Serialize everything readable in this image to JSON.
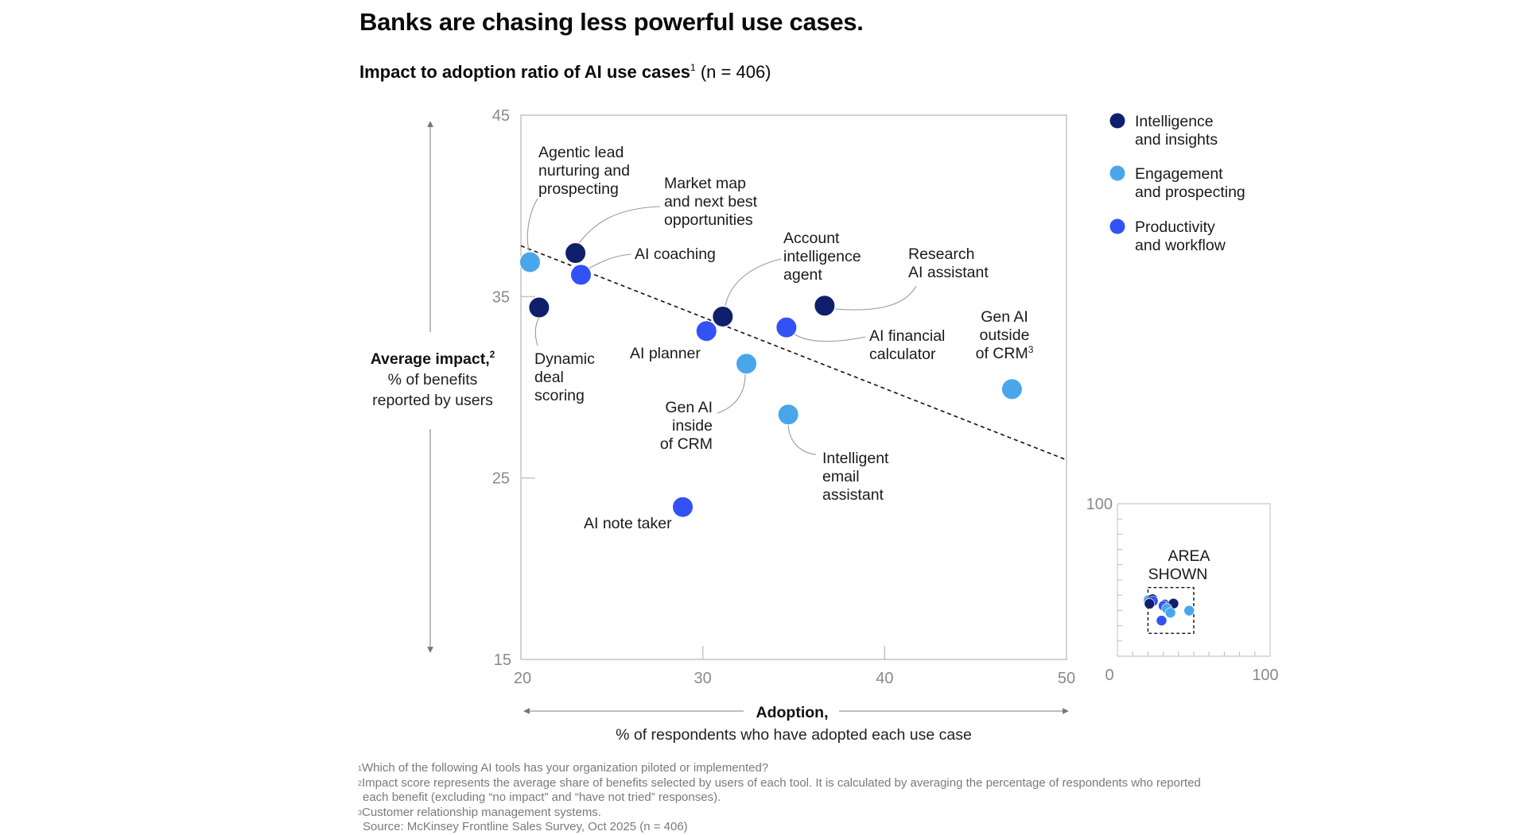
{
  "title": "Banks are chasing less powerful use cases.",
  "subtitle": {
    "main": "Impact to adoption ratio of AI use cases",
    "sup": "1",
    "n": " (n = 406)"
  },
  "colors": {
    "intelligence": "#0f1f6b",
    "engagement": "#4aa6ea",
    "productivity": "#3352f5",
    "axis": "#b8b8b8",
    "arrow": "#777777",
    "tick_text": "#8a8a8a",
    "leader": "#9a9a9a"
  },
  "chart_data": {
    "type": "scatter",
    "title": "Impact to adoption ratio of AI use cases",
    "xlabel": "Adoption,",
    "xlabel_sub": "% of respondents who have adopted each use case",
    "ylabel": "Average impact,",
    "ylabel_sup": "2",
    "ylabel_sub": [
      "% of benefits",
      "reported by users"
    ],
    "xlim": [
      20,
      50
    ],
    "ylim": [
      15,
      45
    ],
    "x_ticks": [
      "20",
      "30",
      "40",
      "50"
    ],
    "y_ticks": [
      "45",
      "35",
      "25",
      "15"
    ],
    "x_tick_values": [
      20,
      30,
      40,
      50
    ],
    "y_tick_values": [
      45,
      35,
      25,
      15
    ],
    "grid": false,
    "legend_position": "top-right",
    "series": [
      {
        "name": "Intelligence and insights",
        "legend_lines": [
          "Intelligence",
          "and insights"
        ],
        "color_key": "intelligence"
      },
      {
        "name": "Engagement and prospecting",
        "legend_lines": [
          "Engagement",
          "and prospecting"
        ],
        "color_key": "engagement"
      },
      {
        "name": "Productivity and workflow",
        "legend_lines": [
          "Productivity",
          "and workflow"
        ],
        "color_key": "productivity"
      }
    ],
    "points": [
      {
        "label": [
          "Agentic lead",
          "nurturing and",
          "prospecting"
        ],
        "series": "engagement",
        "x": 20.5,
        "y": 36.9
      },
      {
        "label": [
          "Market map",
          "and next best",
          "opportunities"
        ],
        "series": "intelligence",
        "x": 23.0,
        "y": 37.4
      },
      {
        "label": [
          "AI coaching"
        ],
        "series": "productivity",
        "x": 23.3,
        "y": 36.2
      },
      {
        "label": [
          "Dynamic",
          "deal",
          "scoring"
        ],
        "series": "intelligence",
        "x": 21.0,
        "y": 34.4
      },
      {
        "label": [
          "Account",
          "intelligence",
          "agent"
        ],
        "series": "intelligence",
        "x": 31.1,
        "y": 33.9
      },
      {
        "label": [
          "AI planner"
        ],
        "series": "productivity",
        "x": 30.2,
        "y": 33.1
      },
      {
        "label": [
          "AI financial",
          "calculator"
        ],
        "series": "productivity",
        "x": 34.6,
        "y": 33.3
      },
      {
        "label": [
          "Research",
          "AI assistant"
        ],
        "series": "intelligence",
        "x": 36.7,
        "y": 34.5
      },
      {
        "label": [
          "Gen AI",
          "inside",
          "of CRM"
        ],
        "series": "engagement",
        "x": 32.4,
        "y": 31.3
      },
      {
        "label": [
          "Intelligent",
          "email",
          "assistant"
        ],
        "series": "engagement",
        "x": 34.7,
        "y": 28.5
      },
      {
        "label": [
          "Gen AI",
          "outside",
          "of CRM"
        ],
        "label_sup": "3",
        "series": "engagement",
        "x": 47.0,
        "y": 29.9
      },
      {
        "label": [
          "AI note taker"
        ],
        "series": "productivity",
        "x": 28.9,
        "y": 23.4
      }
    ],
    "trendline": {
      "style": "dashed",
      "x": [
        20,
        50
      ],
      "y": [
        37.8,
        26.0
      ]
    },
    "inset": {
      "label": [
        "AREA",
        "SHOWN"
      ],
      "xlim": [
        0,
        100
      ],
      "ylim": [
        0,
        100
      ],
      "tick_labels": {
        "y_top": "100",
        "x_left": "0",
        "x_right": "100"
      },
      "tick_step": 10,
      "area_shown": {
        "x": [
          20,
          50
        ],
        "y": [
          15,
          45
        ]
      }
    }
  },
  "footnotes": [
    {
      "sup": "1",
      "text": "Which of the following AI tools has your organization piloted or implemented?"
    },
    {
      "sup": "2",
      "text": "Impact score represents the average share of benefits selected by users of each tool. It is calculated by averaging the percentage of respondents who reported"
    },
    {
      "sup": "",
      "text": "each benefit (excluding “no impact” and “have not tried” responses)."
    },
    {
      "sup": "3",
      "text": "Customer relationship management systems."
    },
    {
      "sup": "",
      "text": "Source: McKinsey Frontline Sales Survey, Oct 2025 (n = 406)"
    }
  ]
}
